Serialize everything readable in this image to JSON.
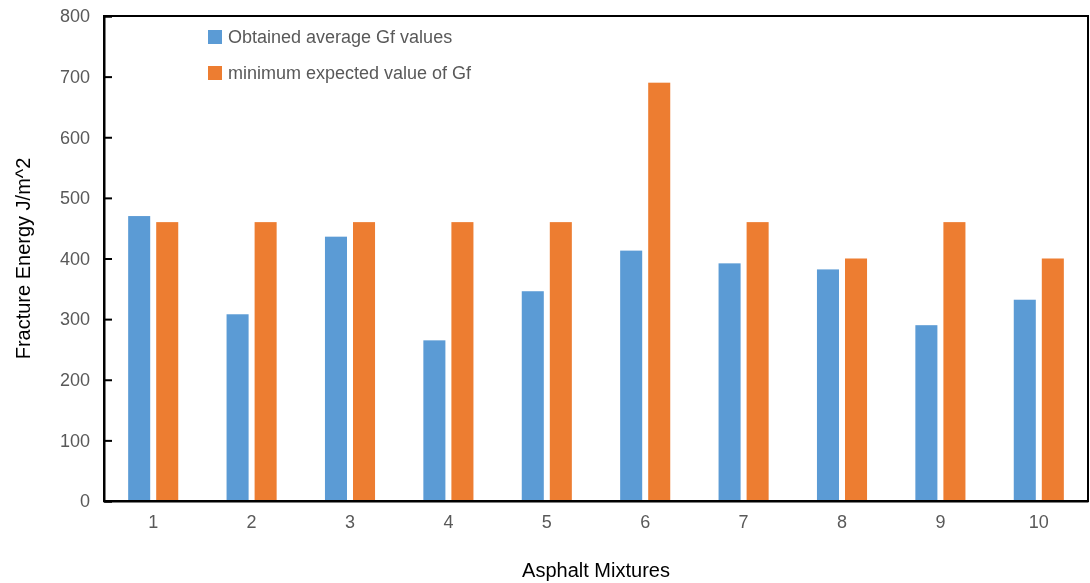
{
  "chart_data": {
    "type": "bar",
    "xlabel": "Asphalt Mixtures",
    "ylabel": "Fracture Energy J/m^2",
    "categories": [
      "1",
      "2",
      "3",
      "4",
      "5",
      "6",
      "7",
      "8",
      "9",
      "10"
    ],
    "series": [
      {
        "name": "Obtained average Gf values",
        "color": "#5b9bd5",
        "values": [
          470,
          308,
          436,
          265,
          346,
          413,
          392,
          382,
          290,
          332
        ]
      },
      {
        "name": "minimum expected value of Gf",
        "color": "#ed7d31",
        "values": [
          460,
          460,
          460,
          460,
          460,
          690,
          460,
          400,
          460,
          400
        ]
      }
    ],
    "ylim": [
      0,
      800
    ],
    "yticks": [
      0,
      100,
      200,
      300,
      400,
      500,
      600,
      700,
      800
    ],
    "legend": "top left"
  }
}
